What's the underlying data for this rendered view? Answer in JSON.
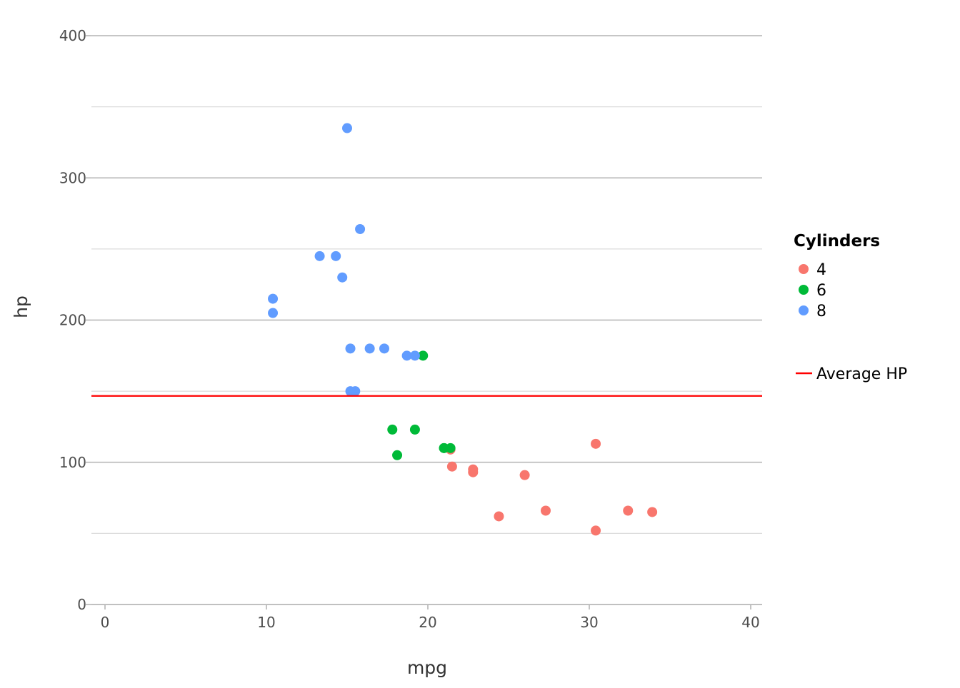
{
  "chart_data": {
    "type": "scatter",
    "title": "",
    "xlabel": "mpg",
    "ylabel": "hp",
    "xlim": [
      0,
      40
    ],
    "ylim": [
      0,
      400
    ],
    "x_ticks": [
      0,
      10,
      20,
      30,
      40
    ],
    "y_ticks": [
      0,
      100,
      200,
      300,
      400
    ],
    "grid": "horizontal",
    "legend": {
      "title": "Cylinders",
      "placement": "right",
      "entries": [
        {
          "label": "4",
          "color": "#F8766D"
        },
        {
          "label": "6",
          "color": "#00BA38"
        },
        {
          "label": "8",
          "color": "#619CFF"
        }
      ],
      "line_entry": {
        "label": "Average HP",
        "color": "#FF0000"
      }
    },
    "reference_line": {
      "label": "Average HP",
      "y": 146.69,
      "color": "#FF0000"
    },
    "series": [
      {
        "name": "4",
        "color": "#F8766D",
        "points": [
          [
            22.8,
            93
          ],
          [
            24.4,
            62
          ],
          [
            22.8,
            95
          ],
          [
            32.4,
            66
          ],
          [
            30.4,
            52
          ],
          [
            33.9,
            65
          ],
          [
            21.5,
            97
          ],
          [
            27.3,
            66
          ],
          [
            26,
            91
          ],
          [
            30.4,
            113
          ],
          [
            21.4,
            109
          ]
        ]
      },
      {
        "name": "6",
        "color": "#00BA38",
        "points": [
          [
            21,
            110
          ],
          [
            21,
            110
          ],
          [
            21.4,
            110
          ],
          [
            18.1,
            105
          ],
          [
            19.2,
            123
          ],
          [
            17.8,
            123
          ],
          [
            19.7,
            175
          ]
        ]
      },
      {
        "name": "8",
        "color": "#619CFF",
        "points": [
          [
            18.7,
            175
          ],
          [
            14.3,
            245
          ],
          [
            16.4,
            180
          ],
          [
            17.3,
            180
          ],
          [
            15.2,
            180
          ],
          [
            10.4,
            205
          ],
          [
            10.4,
            215
          ],
          [
            14.7,
            230
          ],
          [
            15.5,
            150
          ],
          [
            15.2,
            150
          ],
          [
            13.3,
            245
          ],
          [
            19.2,
            175
          ],
          [
            15.8,
            264
          ],
          [
            15,
            335
          ]
        ]
      }
    ]
  }
}
